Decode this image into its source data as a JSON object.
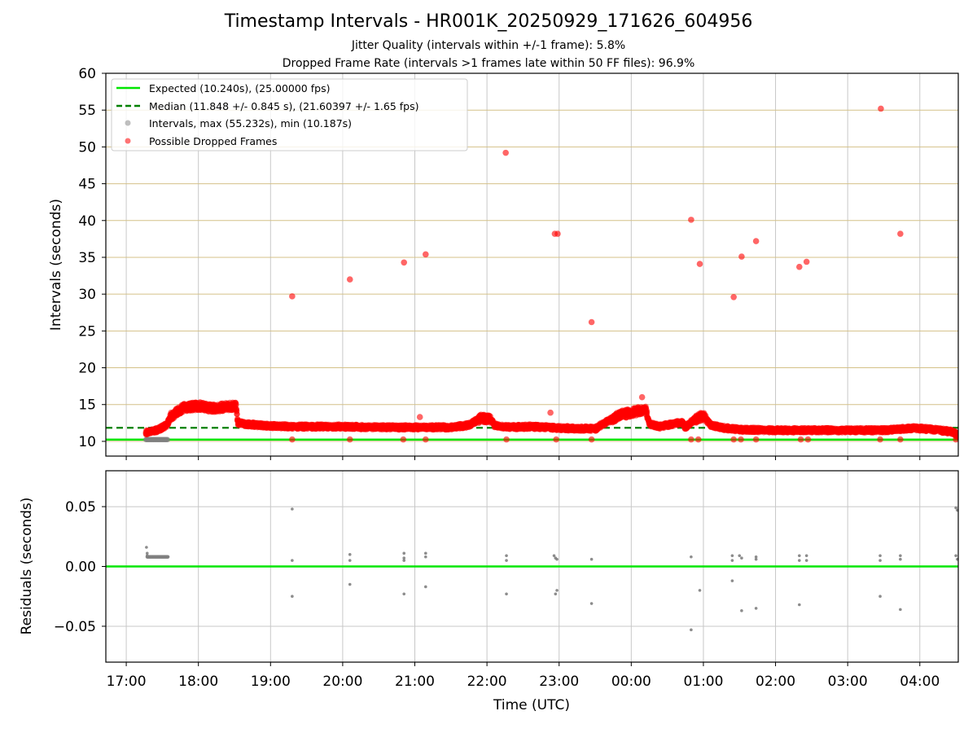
{
  "title": "Timestamp Intervals - HR001K_20250929_171626_604956",
  "subtitle_jitter": "Jitter Quality (intervals within +/-1 frame): 5.8%",
  "subtitle_dropped": "Dropped Frame Rate (intervals >1 frames late within 50 FF files): 96.9%",
  "colors": {
    "expected": "#00e600",
    "median": "#008000",
    "interval": "#808080",
    "dropped": "#ff0000",
    "hgrid_top": "#d4c188",
    "grid": "#c8c8c8"
  },
  "chart_data": [
    {
      "type": "scatter",
      "panel": "top",
      "ylabel": "Intervals (seconds)",
      "xlabel": "",
      "ylim": [
        8,
        60
      ],
      "yticks": [
        10,
        15,
        20,
        25,
        30,
        35,
        40,
        45,
        50,
        55,
        60
      ],
      "xlim": [
        16.717,
        28.533
      ],
      "xticks": [
        17,
        18,
        19,
        20,
        21,
        22,
        23,
        24,
        25,
        26,
        27,
        28
      ],
      "expected_interval": 10.24,
      "median_interval": 11.848,
      "legend": {
        "position": "top-left",
        "entries": [
          {
            "label": "Expected (10.240s), (25.00000 fps)",
            "style": "solid-line"
          },
          {
            "label": "Median (11.848 +/- 0.845 s), (21.60397 +/- 1.65 fps)",
            "style": "dashed-line"
          },
          {
            "label": "Intervals, max (55.232s), min (10.187s)",
            "style": "grey-dot"
          },
          {
            "label": "Possible Dropped Frames",
            "style": "red-dot"
          }
        ]
      },
      "normal_intervals": {
        "x_start": 17.27,
        "x_end": 17.58,
        "y": 10.24
      },
      "trend": [
        [
          17.27,
          11.2
        ],
        [
          17.42,
          11.5
        ],
        [
          17.56,
          12.2
        ],
        [
          17.62,
          13.4
        ],
        [
          17.8,
          14.6
        ],
        [
          18.0,
          14.8
        ],
        [
          18.2,
          14.5
        ],
        [
          18.4,
          14.7
        ],
        [
          18.52,
          14.8
        ],
        [
          18.55,
          12.5
        ],
        [
          18.7,
          12.3
        ],
        [
          19.0,
          12.1
        ],
        [
          19.3,
          12.0
        ],
        [
          19.6,
          12.0
        ],
        [
          20.0,
          12.0
        ],
        [
          20.5,
          11.9
        ],
        [
          21.0,
          11.9
        ],
        [
          21.5,
          11.9
        ],
        [
          21.75,
          12.2
        ],
        [
          21.92,
          13.2
        ],
        [
          22.05,
          13.0
        ],
        [
          22.1,
          12.2
        ],
        [
          22.3,
          11.9
        ],
        [
          22.6,
          12.0
        ],
        [
          23.0,
          11.8
        ],
        [
          23.5,
          11.7
        ],
        [
          23.65,
          12.6
        ],
        [
          23.85,
          13.6
        ],
        [
          24.05,
          14.0
        ],
        [
          24.2,
          14.4
        ],
        [
          24.25,
          12.4
        ],
        [
          24.4,
          12.0
        ],
        [
          24.55,
          12.3
        ],
        [
          24.7,
          12.6
        ],
        [
          24.75,
          11.9
        ],
        [
          24.85,
          12.8
        ],
        [
          25.0,
          13.5
        ],
        [
          25.1,
          12.2
        ],
        [
          25.3,
          11.8
        ],
        [
          25.5,
          11.6
        ],
        [
          26.0,
          11.5
        ],
        [
          26.5,
          11.5
        ],
        [
          27.0,
          11.5
        ],
        [
          27.5,
          11.5
        ],
        [
          27.9,
          11.8
        ],
        [
          28.2,
          11.6
        ],
        [
          28.45,
          11.3
        ],
        [
          28.533,
          10.8
        ]
      ],
      "dropped_outliers": [
        [
          19.3,
          29.7
        ],
        [
          20.1,
          32.0
        ],
        [
          20.85,
          34.3
        ],
        [
          21.15,
          35.4
        ],
        [
          22.26,
          49.2
        ],
        [
          22.94,
          38.2
        ],
        [
          22.98,
          38.2
        ],
        [
          22.88,
          13.9
        ],
        [
          23.45,
          26.2
        ],
        [
          24.15,
          16.0
        ],
        [
          21.07,
          13.3
        ],
        [
          24.83,
          40.1
        ],
        [
          24.95,
          34.1
        ],
        [
          25.42,
          29.6
        ],
        [
          25.53,
          35.1
        ],
        [
          25.73,
          37.2
        ],
        [
          26.33,
          33.7
        ],
        [
          26.43,
          34.4
        ],
        [
          27.46,
          55.2
        ],
        [
          27.73,
          38.2
        ]
      ],
      "dropped_at_expected": [
        19.3,
        20.1,
        20.84,
        21.15,
        22.27,
        22.96,
        23.45,
        24.83,
        24.93,
        25.42,
        25.52,
        25.73,
        26.35,
        26.45,
        27.45,
        27.73,
        28.5
      ]
    },
    {
      "type": "scatter",
      "panel": "bottom",
      "ylabel": "Residuals (seconds)",
      "xlabel": "Time (UTC)",
      "ylim": [
        -0.08,
        0.08
      ],
      "yticks": [
        -0.05,
        0.0,
        0.05
      ],
      "ytick_labels": [
        "−0.05",
        "0.00",
        "0.05"
      ],
      "xlim": [
        16.717,
        28.533
      ],
      "xtick_labels": [
        "17:00",
        "18:00",
        "19:00",
        "20:00",
        "21:00",
        "22:00",
        "23:00",
        "00:00",
        "01:00",
        "02:00",
        "03:00",
        "04:00"
      ],
      "zero_line": 0.0,
      "residual_cluster": {
        "x_start": 17.29,
        "x_end": 17.58,
        "y": 0.008
      },
      "residual_points": [
        [
          17.28,
          0.016
        ],
        [
          17.29,
          0.011
        ],
        [
          17.29,
          0.009
        ],
        [
          19.3,
          0.048
        ],
        [
          19.3,
          0.005
        ],
        [
          19.3,
          -0.025
        ],
        [
          20.1,
          0.01
        ],
        [
          20.1,
          0.005
        ],
        [
          20.1,
          -0.015
        ],
        [
          20.85,
          0.011
        ],
        [
          20.85,
          0.007
        ],
        [
          20.85,
          0.005
        ],
        [
          20.85,
          -0.023
        ],
        [
          21.15,
          0.011
        ],
        [
          21.15,
          0.008
        ],
        [
          21.15,
          -0.017
        ],
        [
          22.27,
          0.009
        ],
        [
          22.27,
          0.005
        ],
        [
          22.27,
          -0.023
        ],
        [
          22.93,
          0.009
        ],
        [
          22.95,
          0.007
        ],
        [
          22.97,
          0.006
        ],
        [
          22.95,
          -0.023
        ],
        [
          22.97,
          -0.02
        ],
        [
          23.45,
          0.006
        ],
        [
          23.45,
          -0.031
        ],
        [
          24.83,
          0.008
        ],
        [
          24.83,
          -0.053
        ],
        [
          24.95,
          -0.02
        ],
        [
          25.4,
          0.009
        ],
        [
          25.4,
          0.005
        ],
        [
          25.4,
          -0.012
        ],
        [
          25.5,
          0.009
        ],
        [
          25.53,
          0.007
        ],
        [
          25.53,
          -0.037
        ],
        [
          25.73,
          0.008
        ],
        [
          25.73,
          0.006
        ],
        [
          25.73,
          -0.035
        ],
        [
          26.33,
          0.009
        ],
        [
          26.33,
          0.005
        ],
        [
          26.33,
          -0.032
        ],
        [
          26.43,
          0.009
        ],
        [
          26.43,
          0.005
        ],
        [
          27.45,
          0.009
        ],
        [
          27.45,
          0.005
        ],
        [
          27.45,
          -0.025
        ],
        [
          27.73,
          0.009
        ],
        [
          27.73,
          0.006
        ],
        [
          27.73,
          -0.036
        ],
        [
          28.5,
          0.049
        ],
        [
          28.52,
          0.047
        ],
        [
          28.5,
          0.009
        ],
        [
          28.52,
          0.006
        ]
      ]
    }
  ]
}
